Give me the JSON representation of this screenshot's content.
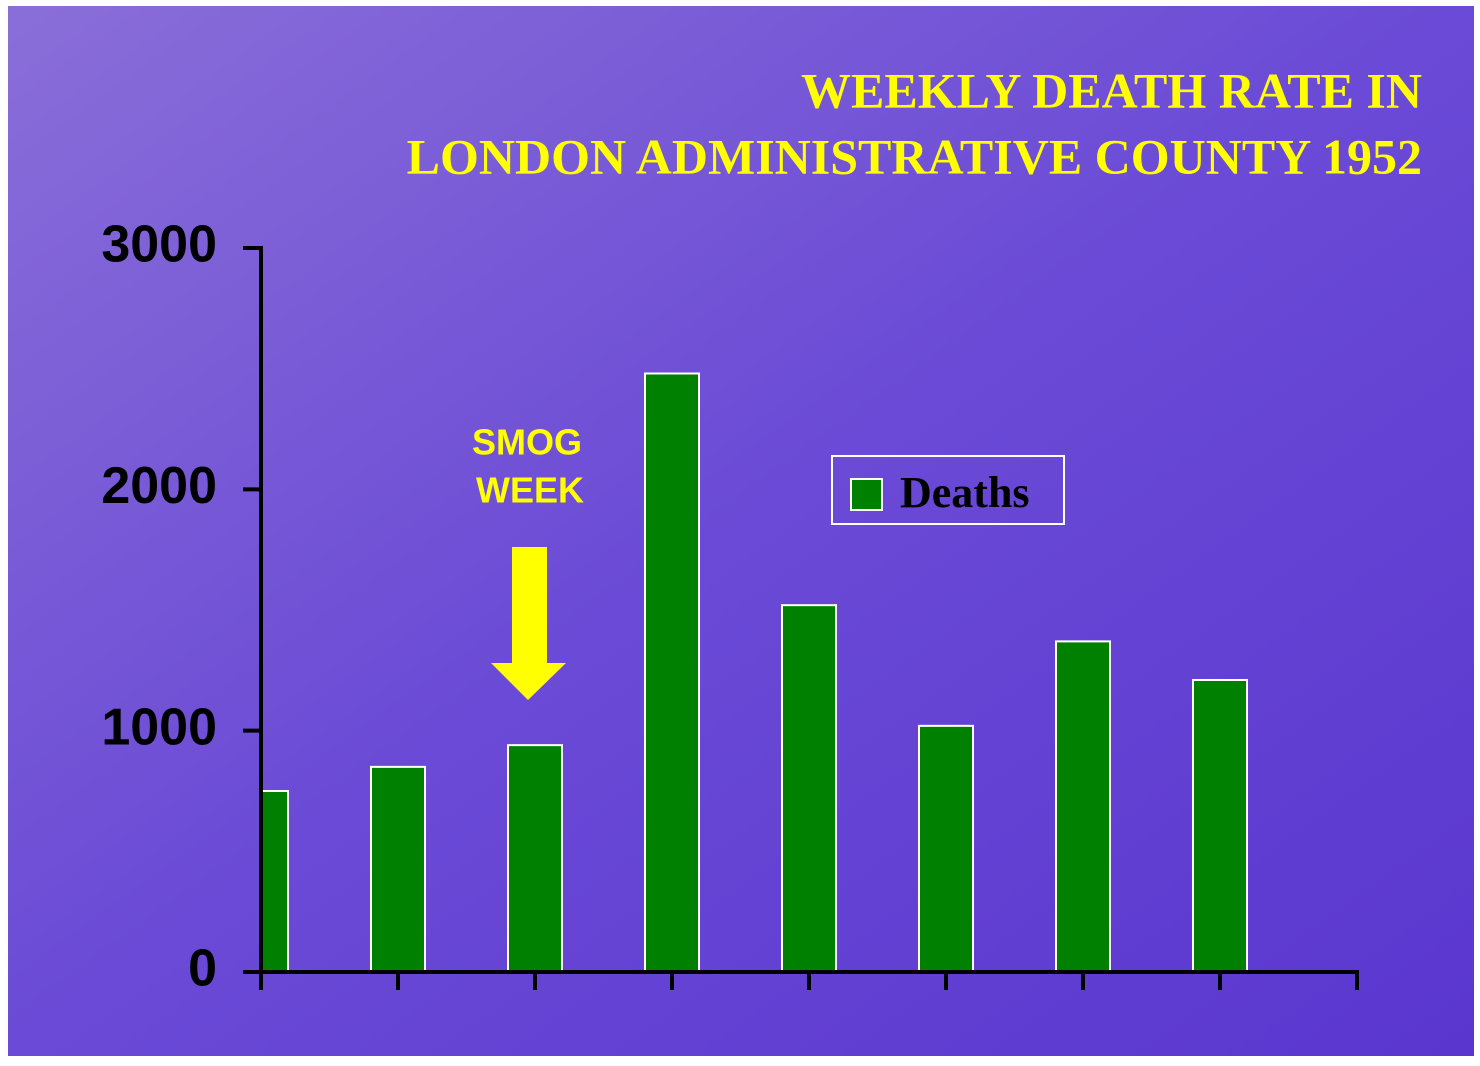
{
  "chart_data": {
    "type": "bar",
    "title": [
      "WEEKLY DEATH RATE IN",
      "LONDON ADMINISTRATIVE COUNTY 1952"
    ],
    "annotation": [
      "SMOG",
      "WEEK"
    ],
    "categories": [
      null,
      null,
      null,
      null,
      null,
      null,
      null,
      null
    ],
    "series": [
      {
        "name": "Deaths",
        "color": "#008000",
        "values": [
          750,
          850,
          940,
          2480,
          1520,
          1020,
          1370,
          1210
        ]
      }
    ],
    "ylim": [
      0,
      3000
    ],
    "yticks": [
      0,
      1000,
      2000,
      3000
    ],
    "grid": false,
    "legend": "upper right"
  }
}
